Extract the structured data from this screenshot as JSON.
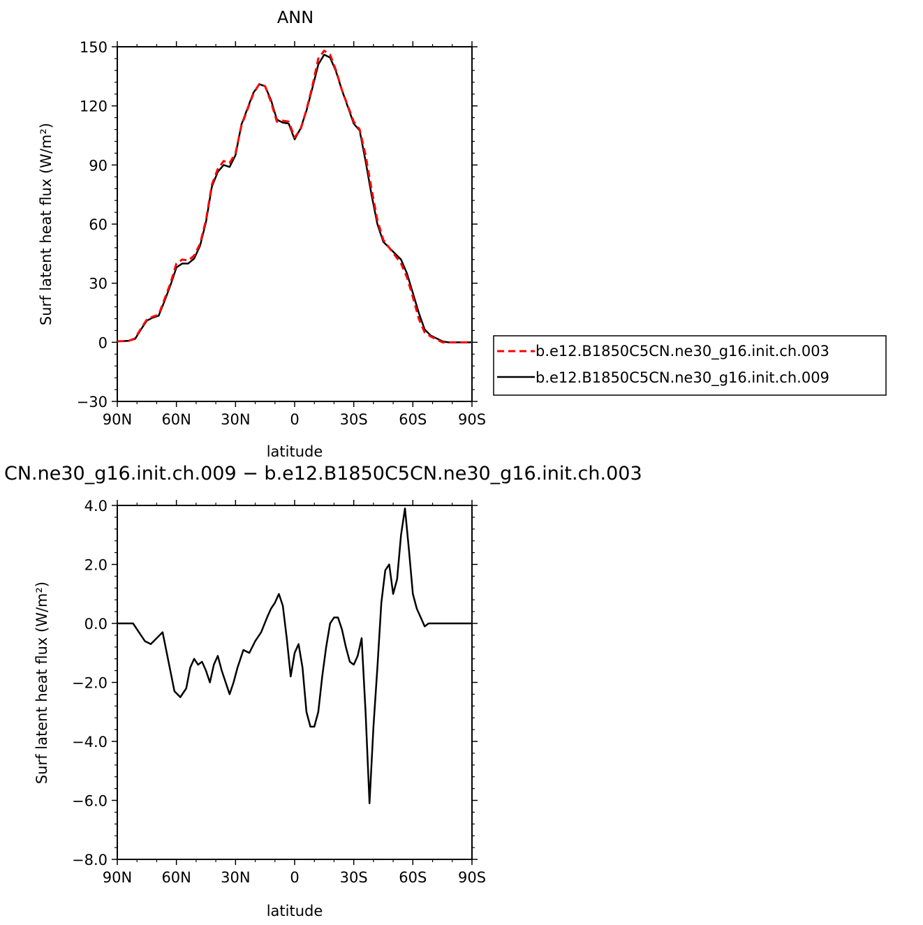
{
  "chart_data": [
    {
      "type": "line",
      "title": "ANN",
      "xlabel": "latitude",
      "ylabel": "Surf latent heat flux (W/m²)",
      "xlim": [
        90,
        -90
      ],
      "ylim": [
        -30,
        150
      ],
      "xticks": [
        90,
        60,
        30,
        0,
        -30,
        -60,
        -90
      ],
      "xtick_labels": [
        "90N",
        "60N",
        "30N",
        "0",
        "30S",
        "60S",
        "90S"
      ],
      "yticks": [
        -30,
        0,
        30,
        60,
        90,
        120,
        150
      ],
      "ytick_labels": [
        "−30",
        "0",
        "30",
        "60",
        "90",
        "120",
        "150"
      ],
      "grid": false,
      "legend_position": "right",
      "x": [
        90,
        87,
        84,
        81,
        78,
        75,
        72,
        69,
        66,
        63,
        60,
        57,
        54,
        51,
        48,
        45,
        42,
        39,
        36,
        33,
        30,
        27,
        24,
        21,
        18,
        15,
        12,
        9,
        6,
        3,
        0,
        -3,
        -6,
        -9,
        -12,
        -15,
        -18,
        -21,
        -24,
        -27,
        -30,
        -33,
        -36,
        -39,
        -42,
        -45,
        -48,
        -51,
        -54,
        -57,
        -60,
        -63,
        -66,
        -69,
        -72,
        -75,
        -78,
        -81,
        -84,
        -87,
        -90
      ],
      "series": [
        {
          "name": "b.e12.B1850C5CN.ne30_g16.init.ch.003",
          "color": "#ff0000",
          "dash": "dashed",
          "values": [
            0.5,
            0.6,
            0.8,
            2.0,
            7.0,
            11.5,
            13.0,
            14.0,
            22.0,
            30.0,
            40.0,
            42.0,
            41.5,
            44.0,
            50.0,
            62.0,
            80.0,
            88.0,
            92.0,
            91.0,
            96.0,
            110.0,
            118.0,
            126.0,
            131.0,
            130.0,
            122.0,
            112.0,
            112.5,
            112.0,
            104.0,
            108.0,
            118.0,
            130.0,
            144.0,
            148.0,
            146.0,
            138.0,
            128.0,
            120.0,
            112.0,
            108.0,
            95.0,
            78.0,
            62.0,
            52.0,
            48.0,
            44.0,
            40.0,
            33.0,
            23.0,
            12.0,
            5.0,
            3.0,
            1.5,
            0.0,
            0.0,
            0.0,
            0.0,
            0.0,
            0.0
          ]
        },
        {
          "name": "b.e12.B1850C5CN.ne30_g16.init.ch.009",
          "color": "#000000",
          "dash": "solid",
          "values": [
            0.5,
            0.6,
            0.8,
            1.7,
            6.5,
            11.0,
            12.5,
            13.5,
            21.0,
            29.0,
            38.0,
            40.0,
            40.0,
            42.5,
            49.0,
            61.0,
            79.0,
            86.5,
            90.0,
            89.0,
            95.0,
            110.5,
            118.5,
            126.5,
            131.0,
            130.0,
            123.0,
            113.0,
            111.5,
            111.0,
            103.0,
            108.5,
            117.5,
            129.0,
            141.0,
            146.0,
            144.5,
            137.5,
            128.0,
            119.5,
            111.0,
            107.5,
            92.0,
            75.0,
            60.0,
            51.0,
            48.0,
            45.0,
            42.0,
            35.0,
            25.0,
            15.0,
            6.5,
            3.5,
            2.0,
            0.5,
            0.0,
            0.0,
            0.0,
            0.0,
            0.0
          ]
        }
      ]
    },
    {
      "type": "line",
      "title": "CN.ne30_g16.init.ch.009 − b.e12.B1850C5CN.ne30_g16.init.ch.003",
      "xlabel": "latitude",
      "ylabel": "Surf latent heat flux (W/m²)",
      "xlim": [
        90,
        -90
      ],
      "ylim": [
        -8,
        4
      ],
      "xticks": [
        90,
        60,
        30,
        0,
        -30,
        -60,
        -90
      ],
      "xtick_labels": [
        "90N",
        "60N",
        "30N",
        "0",
        "30S",
        "60S",
        "90S"
      ],
      "yticks": [
        -8,
        -6,
        -4,
        -2,
        0,
        2,
        4
      ],
      "ytick_labels": [
        "−8.0",
        "−6.0",
        "−4.0",
        "−2.0",
        "0.0",
        "2.0",
        "4.0"
      ],
      "grid": false,
      "x": [
        90,
        86,
        82,
        79,
        76,
        73,
        70,
        67,
        64,
        61,
        58,
        55,
        53,
        51,
        49,
        47,
        45,
        43,
        41,
        39,
        37,
        35,
        33,
        31,
        29,
        26,
        23,
        20,
        17,
        14,
        12,
        10,
        8,
        6,
        4,
        2,
        0,
        -2,
        -4,
        -6,
        -8,
        -10,
        -12,
        -14,
        -16,
        -18,
        -20,
        -22,
        -24,
        -26,
        -28,
        -30,
        -32,
        -34,
        -36,
        -38,
        -40,
        -42,
        -44,
        -46,
        -48,
        -50,
        -52,
        -54,
        -56,
        -58,
        -60,
        -62,
        -64,
        -66,
        -68,
        -70,
        -72,
        -75,
        -78,
        -81,
        -84,
        -87,
        -90
      ],
      "values": [
        0.0,
        0.0,
        0.0,
        -0.3,
        -0.6,
        -0.7,
        -0.5,
        -0.3,
        -1.3,
        -2.3,
        -2.5,
        -2.2,
        -1.5,
        -1.2,
        -1.4,
        -1.3,
        -1.6,
        -2.0,
        -1.4,
        -1.1,
        -1.6,
        -2.0,
        -2.4,
        -2.0,
        -1.5,
        -0.9,
        -1.0,
        -0.6,
        -0.3,
        0.2,
        0.5,
        0.7,
        1.0,
        0.6,
        -0.5,
        -1.8,
        -1.0,
        -0.7,
        -1.5,
        -3.0,
        -3.5,
        -3.5,
        -3.0,
        -1.8,
        -0.8,
        0.0,
        0.2,
        0.2,
        -0.2,
        -0.8,
        -1.3,
        -1.4,
        -1.1,
        -0.5,
        -3.0,
        -6.1,
        -3.5,
        -1.5,
        0.7,
        1.8,
        2.0,
        1.0,
        1.5,
        3.0,
        3.9,
        2.5,
        1.0,
        0.5,
        0.2,
        -0.1,
        0.0,
        0.0,
        0.0,
        0.0,
        0.0,
        0.0,
        0.0,
        0.0,
        0.0
      ]
    }
  ]
}
